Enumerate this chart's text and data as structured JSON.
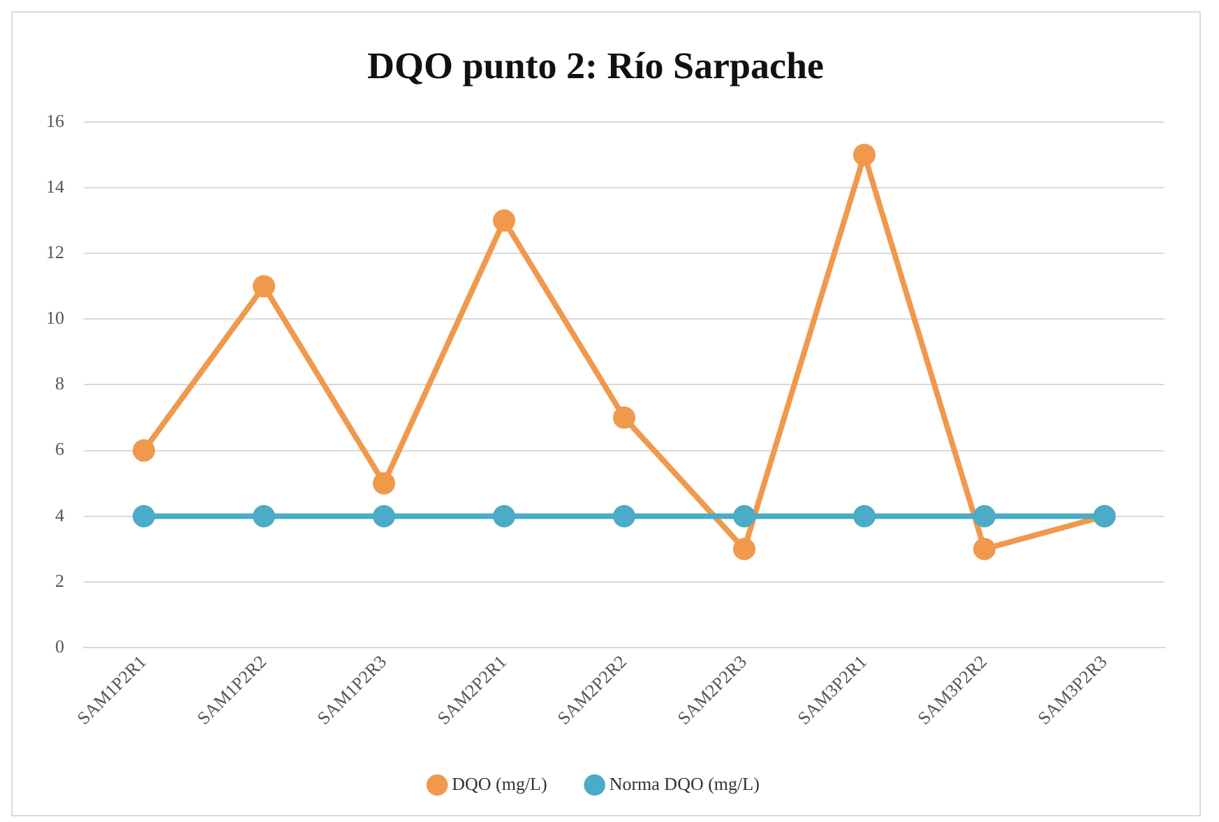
{
  "chart_data": {
    "type": "line",
    "title": "DQO punto 2: Río Sarpache",
    "categories": [
      "SAM1P2R1",
      "SAM1P2R2",
      "SAM1P2R3",
      "SAM2P2R1",
      "SAM2P2R2",
      "SAM2P2R3",
      "SAM3P2R1",
      "SAM3P2R2",
      "SAM3P2R3"
    ],
    "series": [
      {
        "name": "DQO (mg/L)",
        "color": "#f0994c",
        "values": [
          6,
          11,
          5,
          13,
          7,
          3,
          15,
          3,
          4
        ]
      },
      {
        "name": "Norma DQO (mg/L)",
        "color": "#4aacc6",
        "values": [
          4,
          4,
          4,
          4,
          4,
          4,
          4,
          4,
          4
        ]
      }
    ],
    "ylim": [
      0,
      16
    ],
    "yticks": [
      0,
      2,
      4,
      6,
      8,
      10,
      12,
      14,
      16
    ],
    "grid": "y",
    "legend": "bottom",
    "marker": "circle",
    "line_style": "solid"
  }
}
